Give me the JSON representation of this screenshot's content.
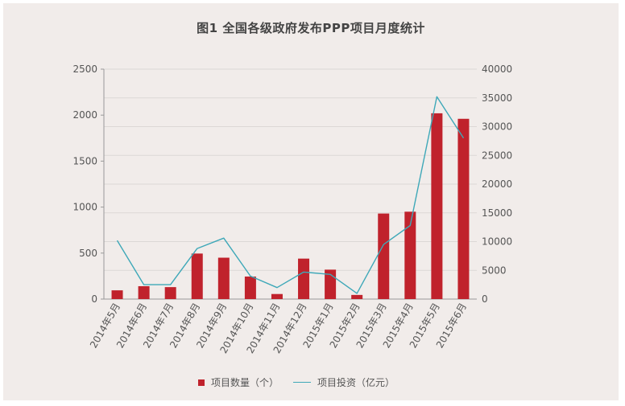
{
  "colors": {
    "bar": "#c0222c",
    "line": "#3ea8b8",
    "grid": "#dcd8d6",
    "axis": "#999999",
    "background": "#f1ecea"
  },
  "chart_data": {
    "type": "bar",
    "title": "图1 全国各级政府发布PPP项目月度统计",
    "categories": [
      "2014年5月",
      "2014年6月",
      "2014年7月",
      "2014年8月",
      "2014年9月",
      "2014年10月",
      "2014年11月",
      "2014年12月",
      "2015年1月",
      "2015年2月",
      "2015年3月",
      "2015年4月",
      "2015年5月",
      "2015年6月"
    ],
    "series": [
      {
        "name": "项目数量（个）",
        "type": "bar",
        "axis": "left",
        "values": [
          95,
          140,
          130,
          495,
          450,
          245,
          55,
          440,
          320,
          45,
          930,
          950,
          2020,
          1960
        ]
      },
      {
        "name": "项目投资（亿元）",
        "type": "line",
        "axis": "right",
        "values": [
          10200,
          2500,
          2500,
          8800,
          10600,
          4000,
          2000,
          4700,
          4300,
          1000,
          9500,
          12800,
          35200,
          28000
        ]
      }
    ],
    "y_left": {
      "min": 0,
      "max": 2500,
      "ticks": [
        0,
        500,
        1000,
        1500,
        2000,
        2500
      ]
    },
    "y_right": {
      "min": 0,
      "max": 40000,
      "ticks": [
        0,
        5000,
        10000,
        15000,
        20000,
        25000,
        30000,
        35000,
        40000
      ]
    },
    "grid": true,
    "legend_position": "bottom"
  },
  "legend": {
    "bar_label": "项目数量（个）",
    "line_label": "项目投资（亿元）"
  }
}
